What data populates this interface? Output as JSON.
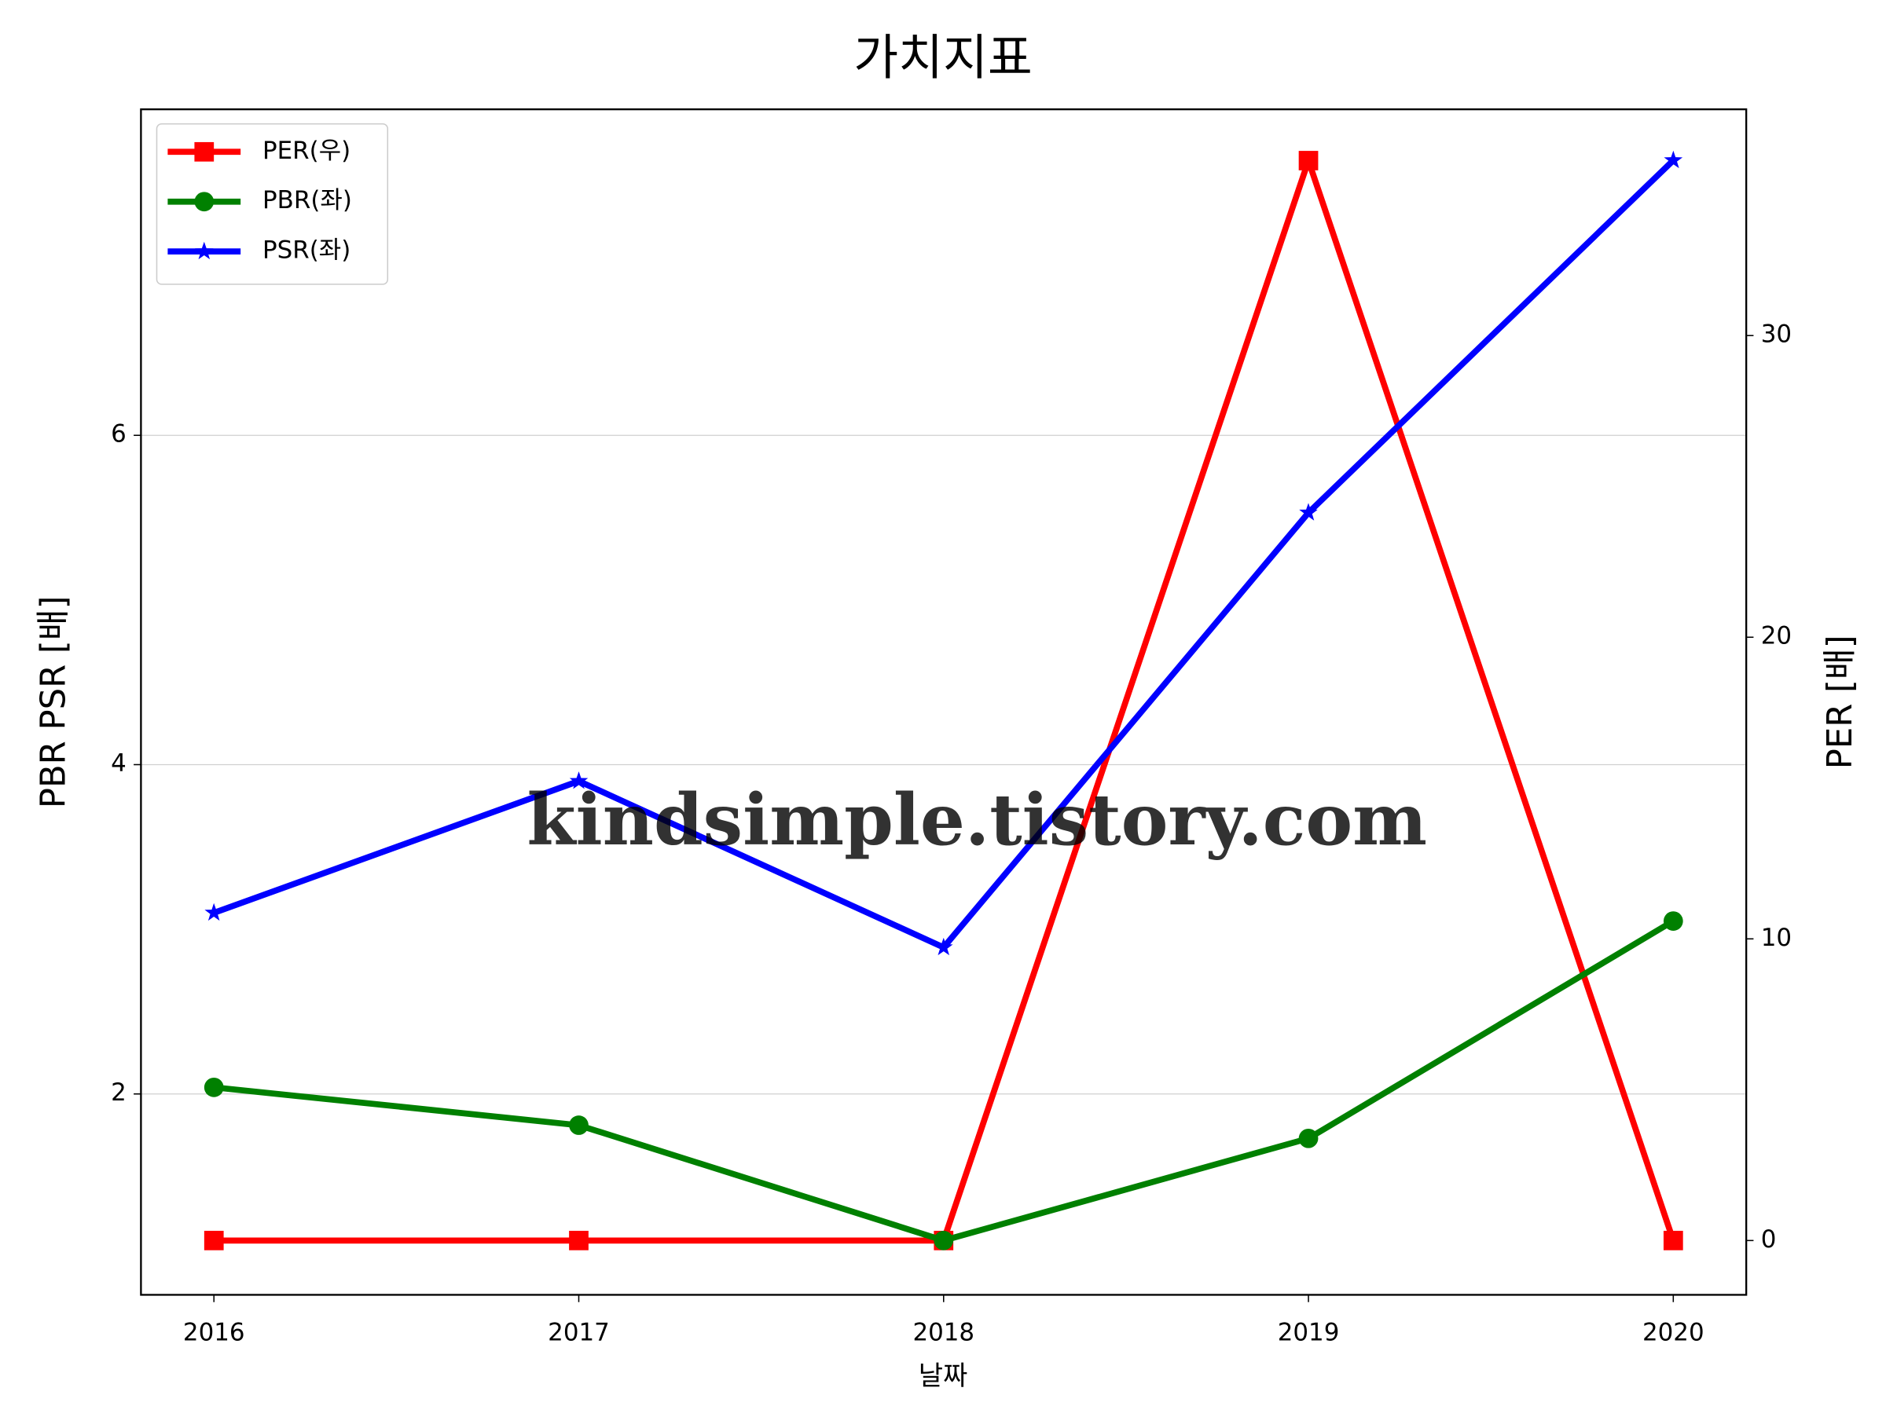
{
  "chart_data": {
    "type": "line",
    "title": "가치지표",
    "x_label": "날짜",
    "y_label": "PBR PSR [배]",
    "y2_label": "PER [배]",
    "categories": [
      "2016",
      "2017",
      "2018",
      "2019",
      "2020"
    ],
    "series": [
      {
        "name": "PER(우)",
        "color": "#ff0000",
        "marker": "square",
        "axis": "y2",
        "values": [
          0,
          0,
          0,
          35.8,
          0
        ]
      },
      {
        "name": "PBR(좌)",
        "color": "#008000",
        "marker": "circle",
        "values": [
          2.04,
          1.81,
          1.11,
          1.73,
          3.05
        ]
      },
      {
        "name": "PSR(좌)",
        "color": "#0000ff",
        "marker": "star",
        "values": [
          3.1,
          3.9,
          2.89,
          5.53,
          7.67
        ]
      }
    ],
    "ylim": [
      0.78,
      7.98
    ],
    "yticks": [
      2,
      4,
      6
    ],
    "y2lim": [
      -1.8,
      37.5
    ],
    "y2ticks": [
      0,
      10,
      20,
      30
    ],
    "y_label_color": "#008000",
    "y2_label_color": "#ff0000",
    "grid": true,
    "legend": "upper left",
    "watermark": "kindsimple.tistory.com"
  }
}
